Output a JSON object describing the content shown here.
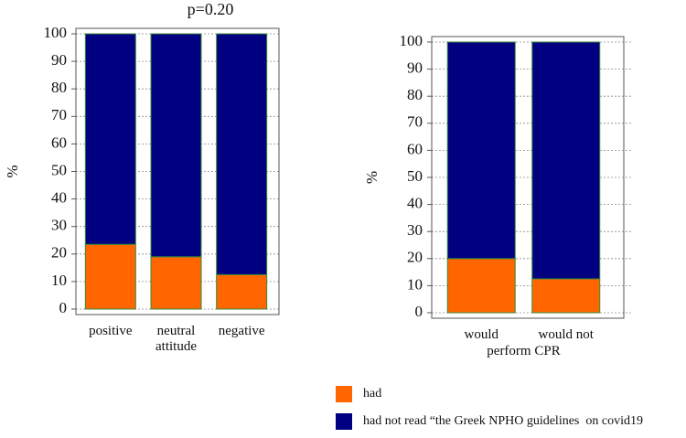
{
  "chart_data": [
    {
      "type": "stacked_bar",
      "title": "p=0.20",
      "ylabel": "%",
      "categories": [
        "positive",
        "neutral attitude",
        "negative"
      ],
      "series": [
        {
          "name": "had",
          "color": "#ff6600",
          "values": [
            23.5,
            19,
            12.5
          ]
        },
        {
          "name": "had not read “the Greek NPHO guidelines  on covid19",
          "color": "#000080",
          "values": [
            76.5,
            81,
            87.5
          ]
        }
      ],
      "ylim": [
        0,
        100
      ],
      "yticks": [
        0,
        10,
        20,
        30,
        40,
        50,
        60,
        70,
        80,
        90,
        100
      ],
      "grid": true
    },
    {
      "type": "stacked_bar",
      "ylabel": "%",
      "xlabel": "perform CPR",
      "categories": [
        "would",
        "would not"
      ],
      "series": [
        {
          "name": "had",
          "color": "#ff6600",
          "values": [
            20,
            12.5
          ]
        },
        {
          "name": "had not read “the Greek NPHO guidelines  on covid19",
          "color": "#000080",
          "values": [
            80,
            87.5
          ]
        }
      ],
      "ylim": [
        0,
        100
      ],
      "yticks": [
        0,
        10,
        20,
        30,
        40,
        50,
        60,
        70,
        80,
        90,
        100
      ],
      "grid": true
    }
  ]
}
